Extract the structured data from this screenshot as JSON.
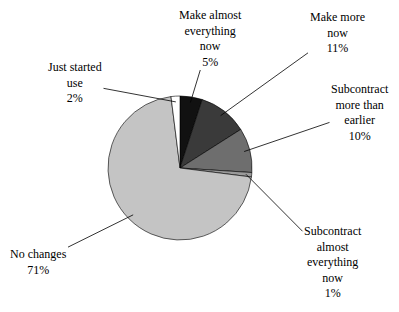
{
  "chart_data": {
    "type": "pie",
    "categories": [
      "Make almost everything now",
      "Make more now",
      "Subcontract more than earlier",
      "Subcontract almost everything now",
      "No changes",
      "Just started use"
    ],
    "values": [
      5,
      11,
      10,
      1,
      71,
      2
    ],
    "value_labels": [
      "5%",
      "11%",
      "10%",
      "1%",
      "71%",
      "2%"
    ],
    "colors": [
      "#111111",
      "#3a3a3a",
      "#6e6e6e",
      "#9a9a9a",
      "#c4c4c4",
      "#ffffff"
    ]
  }
}
